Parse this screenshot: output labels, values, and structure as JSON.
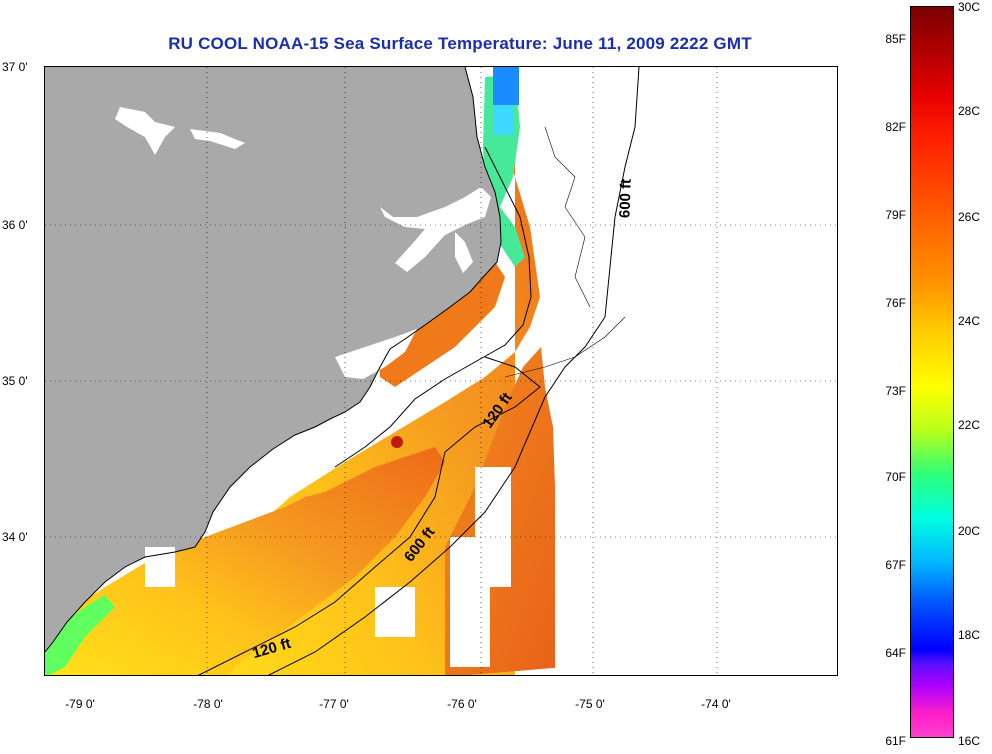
{
  "title": "RU COOL  NOAA-15  Sea Surface Temperature:  June 11, 2009 2222 GMT",
  "latitude_labels": [
    "37 0'",
    "36 0'",
    "35 0'",
    "34 0'"
  ],
  "longitude_labels": [
    "-79 0'",
    "-78 0'",
    "-77 0'",
    "-76 0'",
    "-75 0'",
    "-74 0'"
  ],
  "contours": [
    "600 ft",
    "120 ft",
    "600 ft",
    "120 ft"
  ],
  "colorbar": {
    "fahrenheit": [
      "85F",
      "82F",
      "79F",
      "76F",
      "73F",
      "70F",
      "67F",
      "64F",
      "61F"
    ],
    "celsius": [
      "30C",
      "28C",
      "26C",
      "24C",
      "22C",
      "20C",
      "18C",
      "16C"
    ],
    "range_c": [
      16,
      30
    ]
  },
  "colors": {
    "land": "#a9a9a9",
    "title": "#1a2fb0",
    "warm": "#f07a18",
    "mid": "#ffd21a",
    "cool": "#3cff80",
    "no_data": "#ffffff"
  }
}
